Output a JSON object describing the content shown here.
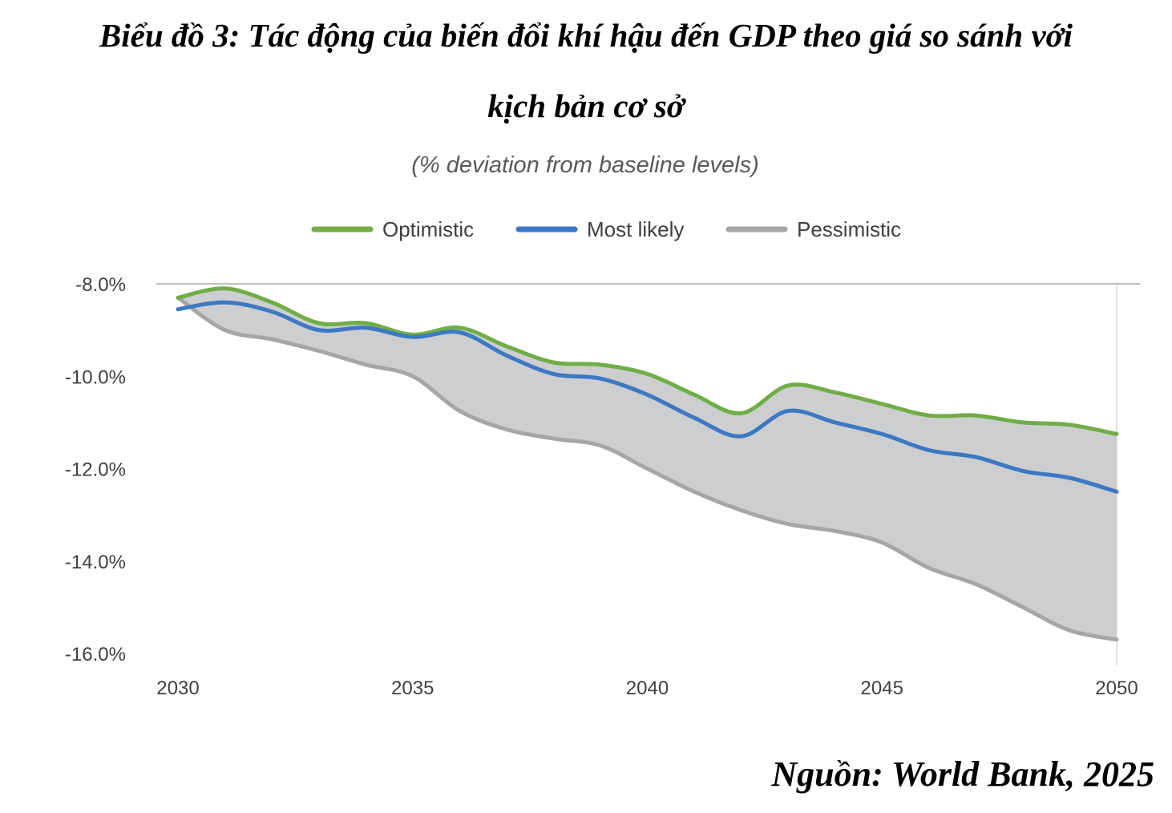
{
  "page": {
    "title_line1": "Biểu đồ 3: Tác động của biến đổi khí hậu đến GDP theo giá so sánh với",
    "title_line2": "kịch bản cơ sở",
    "source": "Nguồn: World Bank, 2025"
  },
  "chart_data": {
    "type": "line",
    "title": "",
    "subtitle": "(% deviation from baseline levels)",
    "xlabel": "",
    "ylabel": "",
    "x": [
      2030,
      2031,
      2032,
      2033,
      2034,
      2035,
      2036,
      2037,
      2038,
      2039,
      2040,
      2041,
      2042,
      2043,
      2044,
      2045,
      2046,
      2047,
      2048,
      2049,
      2050
    ],
    "series": [
      {
        "name": "Optimistic",
        "color": "#70ad47",
        "values": [
          -8.3,
          -8.1,
          -8.4,
          -8.85,
          -8.85,
          -9.1,
          -8.95,
          -9.35,
          -9.7,
          -9.75,
          -9.95,
          -10.4,
          -10.8,
          -10.2,
          -10.35,
          -10.6,
          -10.85,
          -10.85,
          -11.0,
          -11.05,
          -11.25
        ]
      },
      {
        "name": "Most likely",
        "color": "#3c78c3",
        "values": [
          -8.55,
          -8.4,
          -8.6,
          -9.0,
          -8.95,
          -9.15,
          -9.05,
          -9.55,
          -9.95,
          -10.05,
          -10.4,
          -10.9,
          -11.3,
          -10.75,
          -11.0,
          -11.25,
          -11.6,
          -11.75,
          -12.05,
          -12.2,
          -12.5
        ]
      },
      {
        "name": "Pessimistic",
        "color": "#a6a6a6",
        "values": [
          -8.3,
          -9.0,
          -9.2,
          -9.45,
          -9.75,
          -10.0,
          -10.75,
          -11.15,
          -11.35,
          -11.5,
          -12.0,
          -12.5,
          -12.9,
          -13.2,
          -13.35,
          -13.6,
          -14.15,
          -14.5,
          -15.0,
          -15.5,
          -15.7
        ]
      }
    ],
    "band": {
      "between": [
        "Optimistic",
        "Pessimistic"
      ],
      "color": "#cdcecf"
    },
    "ylim": [
      -16.0,
      -8.0
    ],
    "yticks": [
      -8.0,
      -10.0,
      -12.0,
      -14.0,
      -16.0
    ],
    "ytick_labels": [
      "-8.0%",
      "-10.0%",
      "-12.0%",
      "-14.0%",
      "-16.0%"
    ],
    "xticks": [
      2030,
      2035,
      2040,
      2045,
      2050
    ],
    "xtick_labels": [
      "2030",
      "2035",
      "2040",
      "2045",
      "2050"
    ],
    "xlim": [
      2030,
      2050
    ],
    "grid": false,
    "legend_position": "top-center"
  }
}
